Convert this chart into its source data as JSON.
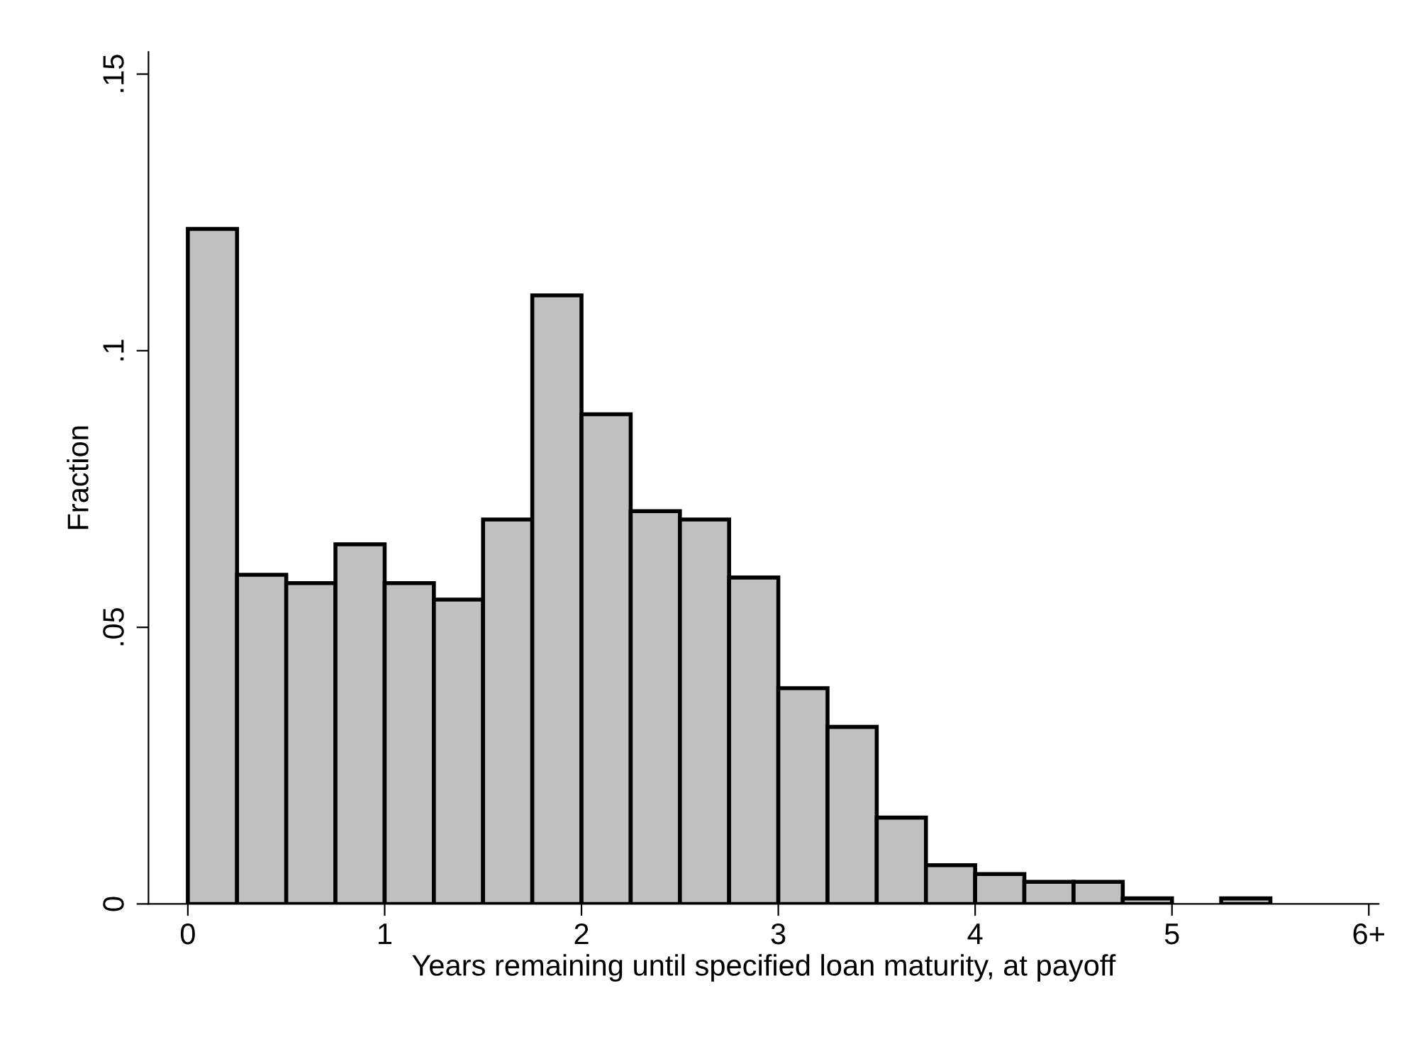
{
  "chart_data": {
    "type": "histogram",
    "xlabel": "Years remaining until specified loan maturity, at payoff",
    "ylabel": "Fraction",
    "bins": [
      0,
      0.25,
      0.5,
      0.75,
      1,
      1.25,
      1.5,
      1.75,
      2,
      2.25,
      2.5,
      2.75,
      3,
      3.25,
      3.5,
      3.75,
      4,
      4.25,
      4.5,
      4.75,
      5,
      5.25,
      5.5
    ],
    "values": [
      0.122,
      0.0595,
      0.058,
      0.065,
      0.058,
      0.055,
      0.0695,
      0.11,
      0.0885,
      0.071,
      0.0695,
      0.059,
      0.039,
      0.032,
      0.0156,
      0.007,
      0.0054,
      0.004,
      0.004,
      0.001,
      0,
      0.001
    ],
    "color": "#c0c0c0",
    "xlim": [
      -0.2,
      6.05
    ],
    "ylim": [
      0,
      0.154
    ],
    "xticks": [
      0,
      1,
      2,
      3,
      4,
      5,
      {
        "value": 6,
        "label": "6+"
      }
    ],
    "yticks": [
      0,
      {
        "value": 0.05,
        "label": ".05"
      },
      {
        "value": 0.1,
        "label": ".1"
      },
      {
        "value": 0.15,
        "label": ".15"
      }
    ],
    "grid": false
  }
}
